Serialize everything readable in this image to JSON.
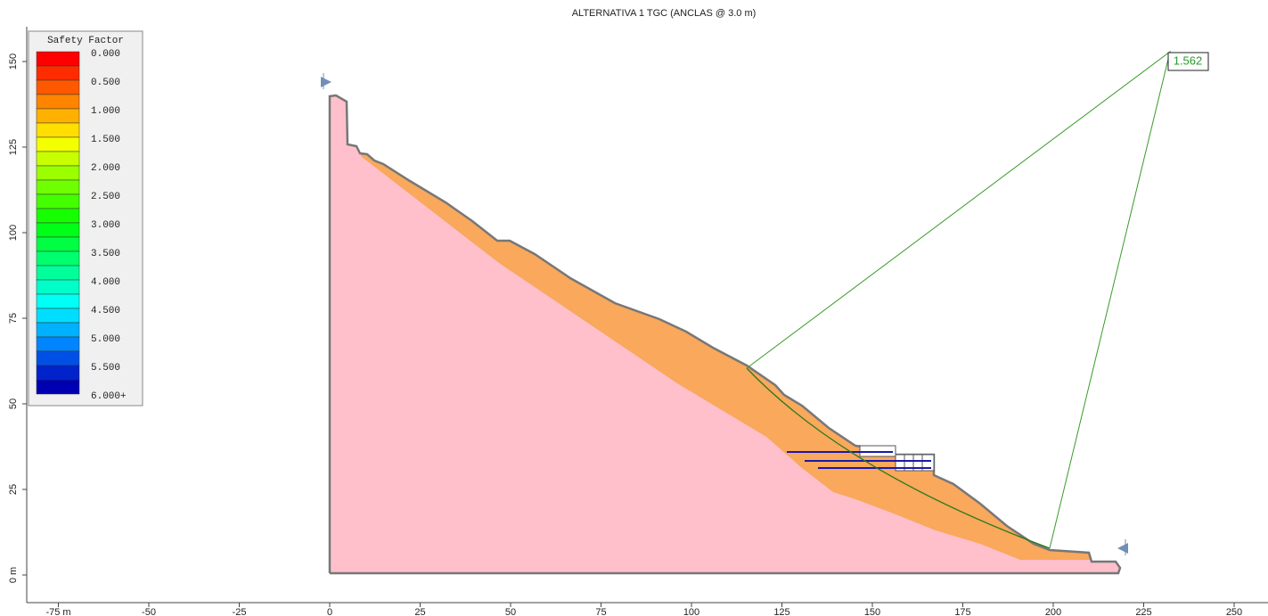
{
  "title": "ALTERNATIVA 1 TGC (ANCLAS @ 3.0 m)",
  "legend": {
    "title": "Safety Factor",
    "labels": [
      "0.000",
      "0.500",
      "1.000",
      "1.500",
      "2.000",
      "2.500",
      "3.000",
      "3.500",
      "4.000",
      "4.500",
      "5.000",
      "5.500",
      "6.000+"
    ]
  },
  "safety_factor_label": "1.562",
  "x_axis": {
    "ticks": [
      {
        "value": -75,
        "label": "-75 m"
      },
      -50,
      -25,
      0,
      25,
      50,
      75,
      100,
      125,
      150,
      175,
      200,
      225,
      250
    ]
  },
  "y_axis": {
    "ticks": [
      {
        "value": 0,
        "label": "0 m"
      },
      25,
      50,
      75,
      100,
      125,
      150
    ]
  }
}
